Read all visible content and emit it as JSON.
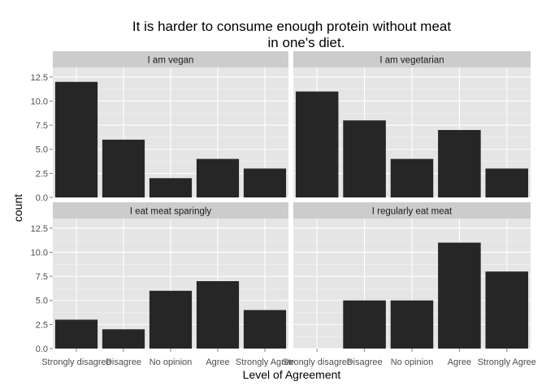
{
  "chart_data": {
    "type": "bar",
    "title_lines": [
      "It is harder to consume enough protein without meat",
      "in one's diet."
    ],
    "xlabel": "Level of Agreement",
    "ylabel": "count",
    "categories": [
      "Strongly disagree",
      "Disagree",
      "No opinion",
      "Agree",
      "Strongly Agree"
    ],
    "y_ticks": [
      "0.0",
      "2.5",
      "5.0",
      "7.5",
      "10.0",
      "12.5"
    ],
    "ylim": [
      0,
      13.5
    ],
    "grid": true,
    "bar_color": "#262626",
    "panel_bg": "#e5e5e5",
    "strip_bg": "#cccccc",
    "facets": [
      {
        "label": "I am vegan",
        "values": [
          12,
          6,
          2,
          4,
          3
        ]
      },
      {
        "label": "I am vegetarian",
        "values": [
          11,
          8,
          4,
          7,
          3
        ]
      },
      {
        "label": "I eat meat sparingly",
        "values": [
          3,
          2,
          6,
          7,
          4
        ]
      },
      {
        "label": "I regularly eat meat",
        "values": [
          0,
          5,
          5,
          11,
          8
        ]
      }
    ]
  }
}
